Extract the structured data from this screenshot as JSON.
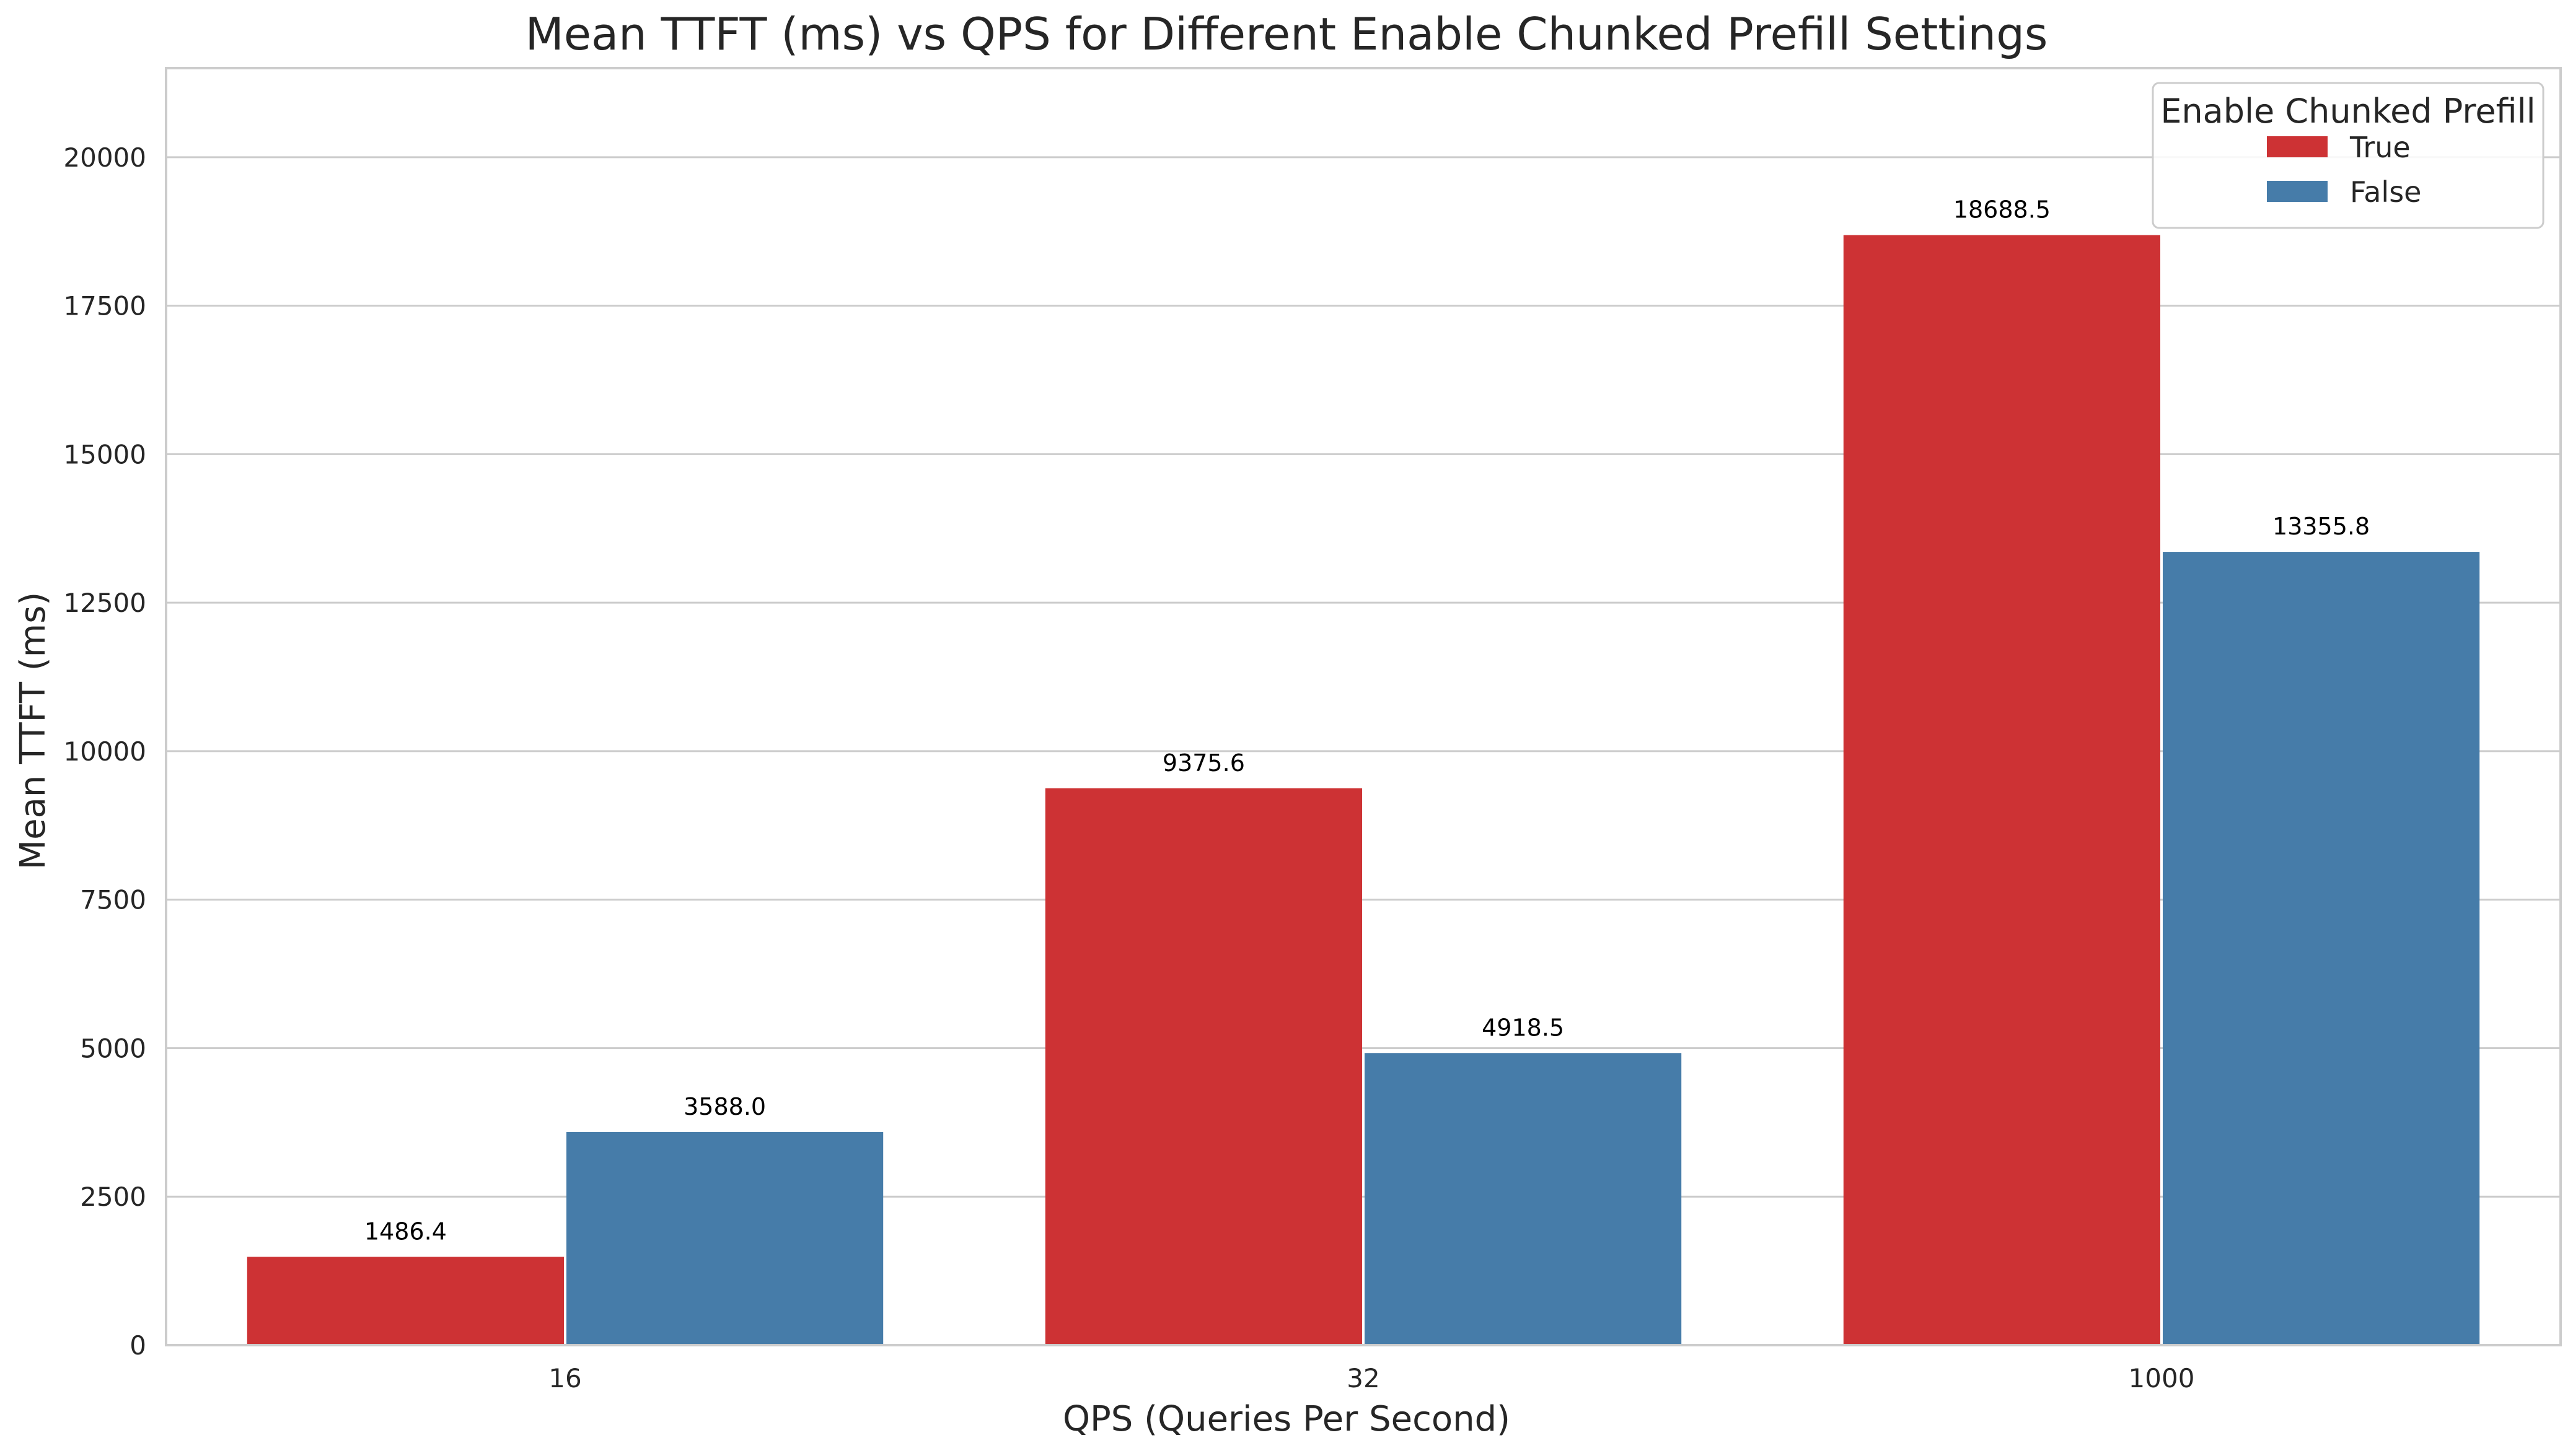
{
  "chart_data": {
    "type": "bar",
    "title": "Mean TTFT (ms) vs QPS for Different Enable Chunked Prefill Settings",
    "xlabel": "QPS (Queries Per Second)",
    "ylabel": "Mean TTFT (ms)",
    "categories": [
      "16",
      "32",
      "1000"
    ],
    "series": [
      {
        "name": "True",
        "color": "#cd3234",
        "values": [
          1486.4,
          9375.6,
          18688.5
        ],
        "labels": [
          "1486.4",
          "9375.6",
          "18688.5"
        ]
      },
      {
        "name": "False",
        "color": "#467ca9",
        "values": [
          3588.0,
          4918.5,
          13355.8
        ],
        "labels": [
          "3588.0",
          "4918.5",
          "13355.8"
        ]
      }
    ],
    "ylim": [
      0,
      21500
    ],
    "yticks": [
      0,
      2500,
      5000,
      7500,
      10000,
      12500,
      15000,
      17500,
      20000
    ],
    "ytick_labels": [
      "0",
      "2500",
      "5000",
      "7500",
      "10000",
      "12500",
      "15000",
      "17500",
      "20000"
    ],
    "grid": "horizontal",
    "legend": {
      "title": "Enable Chunked Prefill",
      "placement": "top-right"
    }
  }
}
